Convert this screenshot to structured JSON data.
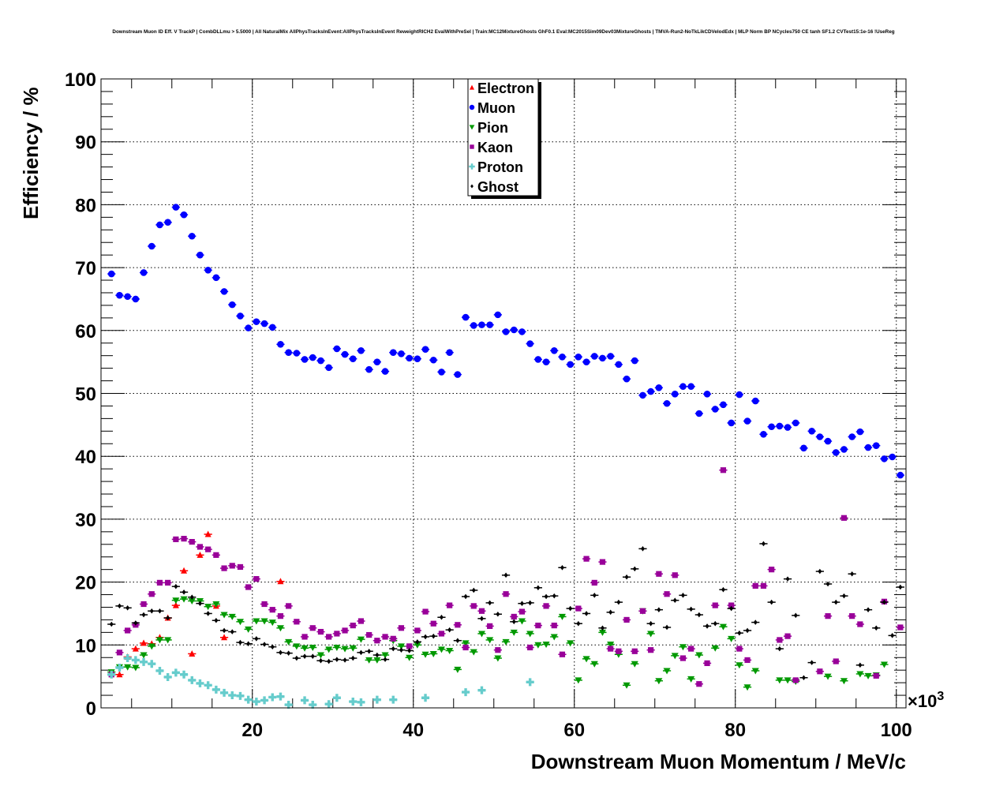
{
  "chart_data": {
    "type": "scatter",
    "title": "Downstream Muon ID Eff. V TrackP | CombDLLmu > 5.5000 | All NaturalMix AllPhysTracksInEvent:AllPhysTracksInEvent ReweightRICH2 EvalWithPreSel | Train:MC12MixtureGhosts GhF0.1 Eval:MC2015Sim09Dev03MixtureGhosts | TMVA-Run2-NoTkLikCDVelodEdx | MLP Norm BP NCycles750 CE tanh SF1.2 CVTest15:1e-16 !UseReg",
    "xlabel": "Downstream Muon Momentum / MeV/c",
    "ylabel": "Efficiency / %",
    "x_multiplier_label": "×10",
    "x_multiplier_exp": "3",
    "xlim": [
      1.2,
      101.2
    ],
    "ylim": [
      0,
      100
    ],
    "xticks": [
      "20",
      "40",
      "60",
      "80",
      "100"
    ],
    "yticks": [
      "0",
      "10",
      "20",
      "30",
      "40",
      "50",
      "60",
      "70",
      "80",
      "90",
      "100"
    ],
    "grid": true,
    "legend_placement": "top-center",
    "bin_start": 2.5,
    "bin_width": 1,
    "series": [
      {
        "name": "Electron",
        "color": "#ff0000",
        "marker": "triangle-up",
        "points": [
          [
            3.5,
            5.3
          ],
          [
            4.5,
            8.1
          ],
          [
            5.5,
            9.4
          ],
          [
            6.5,
            10.3
          ],
          [
            7.5,
            10.2
          ],
          [
            8.5,
            11.2
          ],
          [
            9.5,
            14.3
          ],
          [
            10.5,
            16.3
          ],
          [
            11.5,
            21.8
          ],
          [
            12.5,
            8.6
          ],
          [
            13.5,
            24.3
          ],
          [
            14.5,
            27.6
          ],
          [
            15.5,
            16.2
          ],
          [
            16.5,
            11.2
          ],
          [
            23.5,
            20.1
          ]
        ]
      },
      {
        "name": "Muon",
        "color": "#0000ff",
        "marker": "circle",
        "values": [
          69,
          65.6,
          65.4,
          65,
          69.2,
          73.4,
          76.8,
          77.2,
          79.6,
          78.4,
          75,
          72,
          69.6,
          68.4,
          66.2,
          64.1,
          62.3,
          60.4,
          61.4,
          61.1,
          60.5,
          57.8,
          56.5,
          56.4,
          55.4,
          55.7,
          55.2,
          54.1,
          57.1,
          56.2,
          55.5,
          56.8,
          53.8,
          55,
          53.5,
          56.5,
          56.3,
          55.6,
          55.5,
          57,
          55.3,
          53.4,
          56.5,
          53,
          62.1,
          60.8,
          60.9,
          60.9,
          62.5,
          59.8,
          60.1,
          59.8,
          57.9,
          55.4,
          55,
          56.8,
          55.8,
          54.6,
          55.8,
          55,
          55.9,
          55.6,
          55.9,
          54.6,
          52.3,
          55.2,
          49.7,
          50.3,
          50.9,
          48.4,
          49.9,
          51.1,
          51.1,
          46.8,
          49.9,
          47.5,
          48.2,
          45.3,
          49.8,
          45.6,
          48.8,
          43.5,
          44.7,
          44.8,
          44.6,
          45.3,
          41.3,
          44,
          43.1,
          42.4,
          40.6,
          41.1,
          43.1,
          43.9,
          41.4,
          41.7,
          39.6,
          39.9,
          37
        ]
      },
      {
        "name": "Pion",
        "color": "#009900",
        "marker": "triangle-down",
        "values": [
          5.7,
          6.5,
          6.5,
          6.4,
          8.4,
          9.8,
          10.8,
          10.8,
          17.1,
          17.3,
          17,
          17,
          16.1,
          16.5,
          14.8,
          14.5,
          13.7,
          12.5,
          13.8,
          13.8,
          13.6,
          12.7,
          10.5,
          9.8,
          9.5,
          9.6,
          8.4,
          9.3,
          9.6,
          9.4,
          9.5,
          10.9,
          7.6,
          7.6,
          8.4,
          10.7,
          9.8,
          8,
          10,
          8.5,
          8.6,
          9.3,
          9.1,
          6.1,
          10.3,
          8.9,
          11.8,
          10.8,
          7.9,
          10.5,
          12,
          13.8,
          11.8,
          10,
          10.1,
          11.3,
          14.5,
          10.3,
          4.4,
          7.8,
          7,
          12,
          10.1,
          8.5,
          3.6,
          7,
          15.4,
          11.8,
          4.3,
          5.9,
          8.3,
          9.7,
          4.6,
          8.4,
          null,
          9.5,
          12.9,
          11,
          6.8,
          3.3,
          5.9,
          null,
          null,
          4.4,
          4.4,
          4.2,
          null,
          null,
          null,
          5,
          null,
          4.3,
          null,
          5.4,
          5.1,
          5.2,
          6.9,
          null,
          null
        ]
      },
      {
        "name": "Kaon",
        "color": "#990099",
        "marker": "square",
        "values": [
          5.3,
          8.8,
          12.3,
          13.2,
          16.5,
          18.1,
          19.9,
          19.9,
          26.8,
          26.9,
          26.4,
          25.6,
          25.2,
          24.3,
          22.2,
          22.6,
          22.4,
          19.2,
          20.5,
          16.5,
          15.6,
          14.6,
          16.2,
          13.7,
          11.3,
          12.7,
          12.1,
          11.3,
          11.8,
          12.3,
          13.1,
          13.8,
          11.6,
          10.7,
          11.3,
          11,
          12.7,
          9.8,
          12.3,
          15.3,
          13.4,
          11.8,
          16.3,
          13.2,
          9.6,
          16.2,
          15.4,
          13,
          9.2,
          18.1,
          14.5,
          15.3,
          9.6,
          13.1,
          16.2,
          13.1,
          8.5,
          null,
          15.8,
          23.7,
          19.9,
          23.2,
          9.4,
          9,
          14,
          9,
          15.4,
          9.2,
          21.3,
          18.1,
          21.1,
          7.9,
          9.4,
          3.8,
          7.1,
          16.3,
          37.8,
          16.3,
          9.4,
          7.6,
          19.4,
          19.4,
          22,
          10.8,
          11.4,
          4.4,
          null,
          null,
          5.8,
          14.6,
          7.4,
          30.2,
          14.6,
          13.3,
          null,
          5.1,
          16.9,
          null,
          12.8
        ]
      },
      {
        "name": "Proton",
        "color": "#66cccc",
        "marker": "cross",
        "points": [
          [
            2.5,
            5.3
          ],
          [
            3.5,
            6.4
          ],
          [
            4.5,
            7.9
          ],
          [
            5.5,
            7.6
          ],
          [
            6.5,
            7.3
          ],
          [
            7.5,
            7
          ],
          [
            8.5,
            5.9
          ],
          [
            9.5,
            4.9
          ],
          [
            10.5,
            5.6
          ],
          [
            11.5,
            5.3
          ],
          [
            12.5,
            4.4
          ],
          [
            13.5,
            3.9
          ],
          [
            14.5,
            3.6
          ],
          [
            15.5,
            2.9
          ],
          [
            16.5,
            2.4
          ],
          [
            17.5,
            2
          ],
          [
            18.5,
            1.9
          ],
          [
            19.5,
            1.3
          ],
          [
            20.5,
            1
          ],
          [
            21.5,
            1.2
          ],
          [
            22.5,
            1.7
          ],
          [
            23.5,
            1.8
          ],
          [
            24.5,
            0.5
          ],
          [
            26.5,
            1.2
          ],
          [
            27.5,
            0.5
          ],
          [
            29.5,
            0.6
          ],
          [
            30.5,
            1.6
          ],
          [
            32.5,
            1
          ],
          [
            33.5,
            0.9
          ],
          [
            35.5,
            1.3
          ],
          [
            37.5,
            1.3
          ],
          [
            41.5,
            1.6
          ],
          [
            46.5,
            2.5
          ],
          [
            48.5,
            2.8
          ],
          [
            54.5,
            4.1
          ]
        ]
      },
      {
        "name": "Ghost",
        "color": "#000000",
        "marker": "diamond",
        "values": [
          13.3,
          16.2,
          15.9,
          13.5,
          14.8,
          15.4,
          15.4,
          14.3,
          19.3,
          18.4,
          17.6,
          16.6,
          15,
          13.9,
          12.3,
          12.1,
          10.4,
          10.2,
          11,
          10.1,
          9.7,
          8.8,
          8.7,
          7.9,
          8.2,
          8.2,
          7.5,
          7.4,
          7.7,
          7.6,
          7.9,
          8.8,
          9,
          8.4,
          7.7,
          9.4,
          9.2,
          9.1,
          10.5,
          11.3,
          11.4,
          14.4,
          12.4,
          10.7,
          17.7,
          18.7,
          14.2,
          16.7,
          14.9,
          21.1,
          13.7,
          16.6,
          16.7,
          19.1,
          17.7,
          17.8,
          22.3,
          15.8,
          13.4,
          15,
          17.9,
          12.7,
          15.2,
          16.8,
          20.8,
          22.1,
          25.3,
          13.4,
          15.6,
          12.8,
          17.1,
          17.9,
          15.7,
          14.8,
          13,
          13.4,
          18.8,
          15.8,
          11.9,
          12.3,
          13.6,
          26.1,
          16.8,
          9.4,
          20.5,
          14.7,
          4.8,
          7.2,
          21.7,
          19.7,
          16.8,
          17.8,
          21.3,
          6.8,
          15.6,
          12.7,
          16.8,
          11.5,
          19.2
        ]
      }
    ]
  }
}
